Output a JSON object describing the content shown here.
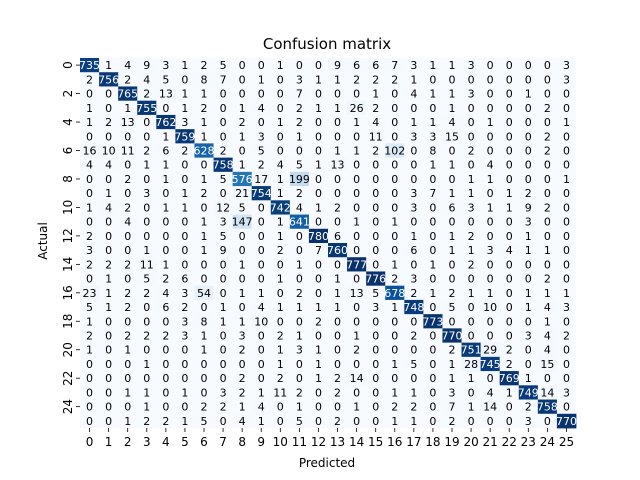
{
  "chart_data": {
    "type": "heatmap",
    "title": "Confusion matrix",
    "xlabel": "Predicted",
    "ylabel": "Actual",
    "x_tick_labels": [
      "0",
      "1",
      "2",
      "3",
      "4",
      "5",
      "6",
      "7",
      "8",
      "9",
      "10",
      "11",
      "12",
      "13",
      "14",
      "15",
      "16",
      "17",
      "18",
      "19",
      "20",
      "21",
      "22",
      "23",
      "24",
      "25"
    ],
    "y_tick_labels": [
      "0",
      "2",
      "4",
      "6",
      "8",
      "10",
      "12",
      "14",
      "16",
      "18",
      "20",
      "22",
      "24"
    ],
    "colormap": "Blues",
    "vmin": 0,
    "vmax": 780,
    "matrix": [
      [
        735,
        1,
        4,
        9,
        3,
        1,
        2,
        5,
        0,
        0,
        1,
        0,
        0,
        9,
        6,
        6,
        7,
        3,
        1,
        1,
        3,
        0,
        0,
        0,
        0,
        3
      ],
      [
        2,
        756,
        2,
        4,
        5,
        0,
        8,
        7,
        0,
        1,
        0,
        3,
        1,
        1,
        2,
        2,
        2,
        1,
        0,
        0,
        0,
        0,
        0,
        0,
        0,
        3
      ],
      [
        0,
        0,
        765,
        2,
        13,
        1,
        1,
        0,
        0,
        0,
        0,
        7,
        0,
        0,
        0,
        1,
        0,
        4,
        1,
        1,
        3,
        0,
        0,
        1,
        0,
        0
      ],
      [
        1,
        0,
        1,
        755,
        0,
        1,
        2,
        0,
        1,
        4,
        0,
        2,
        1,
        1,
        26,
        2,
        0,
        0,
        0,
        1,
        0,
        0,
        0,
        0,
        2,
        0
      ],
      [
        1,
        2,
        13,
        0,
        762,
        3,
        1,
        0,
        2,
        0,
        1,
        2,
        0,
        0,
        1,
        4,
        0,
        1,
        1,
        4,
        0,
        1,
        0,
        0,
        0,
        1
      ],
      [
        0,
        0,
        0,
        0,
        1,
        759,
        1,
        0,
        1,
        3,
        0,
        1,
        0,
        0,
        0,
        11,
        0,
        3,
        3,
        15,
        0,
        0,
        0,
        0,
        2,
        0
      ],
      [
        16,
        10,
        11,
        2,
        6,
        2,
        628,
        2,
        0,
        5,
        0,
        0,
        0,
        1,
        1,
        2,
        102,
        0,
        8,
        0,
        2,
        0,
        0,
        0,
        2,
        0
      ],
      [
        4,
        4,
        0,
        1,
        1,
        0,
        0,
        758,
        1,
        2,
        4,
        5,
        1,
        13,
        0,
        0,
        0,
        0,
        1,
        1,
        0,
        4,
        0,
        0,
        0,
        0
      ],
      [
        0,
        0,
        2,
        0,
        1,
        0,
        1,
        5,
        576,
        17,
        1,
        199,
        0,
        0,
        0,
        0,
        0,
        0,
        0,
        0,
        1,
        1,
        0,
        0,
        0,
        1
      ],
      [
        0,
        1,
        0,
        3,
        0,
        1,
        2,
        0,
        21,
        754,
        1,
        2,
        0,
        0,
        0,
        0,
        0,
        3,
        7,
        1,
        1,
        0,
        1,
        2,
        0,
        0
      ],
      [
        1,
        4,
        2,
        0,
        1,
        1,
        0,
        12,
        5,
        0,
        742,
        4,
        1,
        2,
        0,
        0,
        0,
        3,
        0,
        6,
        3,
        1,
        1,
        9,
        2,
        0
      ],
      [
        0,
        0,
        4,
        0,
        0,
        0,
        1,
        3,
        147,
        0,
        1,
        641,
        0,
        0,
        1,
        0,
        1,
        0,
        0,
        0,
        0,
        0,
        0,
        3,
        0,
        0
      ],
      [
        2,
        0,
        0,
        0,
        0,
        0,
        1,
        5,
        0,
        0,
        1,
        0,
        780,
        6,
        0,
        0,
        0,
        1,
        0,
        1,
        2,
        0,
        0,
        1,
        0,
        0
      ],
      [
        3,
        0,
        0,
        1,
        0,
        0,
        1,
        9,
        0,
        0,
        2,
        0,
        7,
        760,
        0,
        0,
        0,
        6,
        0,
        1,
        1,
        3,
        4,
        1,
        1,
        0
      ],
      [
        2,
        2,
        2,
        11,
        1,
        0,
        0,
        0,
        1,
        0,
        0,
        1,
        0,
        0,
        777,
        0,
        1,
        0,
        1,
        0,
        2,
        0,
        0,
        0,
        0,
        0
      ],
      [
        0,
        1,
        0,
        5,
        2,
        6,
        0,
        0,
        0,
        0,
        1,
        0,
        0,
        1,
        0,
        776,
        2,
        3,
        0,
        0,
        0,
        0,
        0,
        0,
        2,
        0
      ],
      [
        23,
        1,
        2,
        2,
        4,
        3,
        54,
        0,
        1,
        1,
        0,
        2,
        0,
        1,
        13,
        5,
        678,
        2,
        1,
        2,
        1,
        1,
        0,
        1,
        1,
        1
      ],
      [
        5,
        1,
        2,
        0,
        6,
        2,
        0,
        1,
        0,
        4,
        1,
        1,
        1,
        1,
        0,
        3,
        1,
        748,
        0,
        5,
        0,
        10,
        0,
        1,
        4,
        3
      ],
      [
        1,
        0,
        0,
        0,
        0,
        3,
        8,
        1,
        1,
        10,
        0,
        0,
        2,
        0,
        0,
        0,
        0,
        0,
        773,
        0,
        0,
        0,
        0,
        0,
        1,
        0
      ],
      [
        2,
        0,
        2,
        2,
        2,
        3,
        1,
        0,
        3,
        0,
        2,
        1,
        0,
        0,
        1,
        0,
        0,
        2,
        0,
        770,
        0,
        0,
        0,
        3,
        4,
        2
      ],
      [
        1,
        0,
        1,
        0,
        0,
        0,
        1,
        0,
        2,
        0,
        1,
        3,
        1,
        0,
        2,
        0,
        0,
        0,
        0,
        2,
        751,
        29,
        2,
        0,
        4,
        0
      ],
      [
        0,
        0,
        0,
        1,
        0,
        0,
        0,
        0,
        0,
        0,
        1,
        0,
        1,
        0,
        0,
        0,
        1,
        5,
        0,
        1,
        28,
        745,
        2,
        0,
        15,
        0
      ],
      [
        0,
        0,
        0,
        0,
        0,
        0,
        0,
        0,
        2,
        0,
        2,
        0,
        1,
        2,
        14,
        0,
        0,
        0,
        0,
        1,
        1,
        0,
        769,
        1,
        0,
        0
      ],
      [
        0,
        0,
        1,
        1,
        0,
        1,
        0,
        3,
        2,
        1,
        11,
        2,
        0,
        2,
        0,
        0,
        1,
        1,
        0,
        3,
        0,
        4,
        1,
        749,
        14,
        3
      ],
      [
        0,
        0,
        0,
        1,
        0,
        0,
        2,
        2,
        1,
        4,
        0,
        1,
        0,
        0,
        1,
        0,
        2,
        2,
        0,
        7,
        1,
        14,
        0,
        2,
        758,
        0
      ],
      [
        0,
        0,
        1,
        2,
        2,
        1,
        5,
        0,
        4,
        1,
        0,
        5,
        0,
        2,
        0,
        0,
        1,
        1,
        0,
        2,
        0,
        0,
        0,
        3,
        0,
        770
      ]
    ],
    "grid": false,
    "colorbar": false
  }
}
